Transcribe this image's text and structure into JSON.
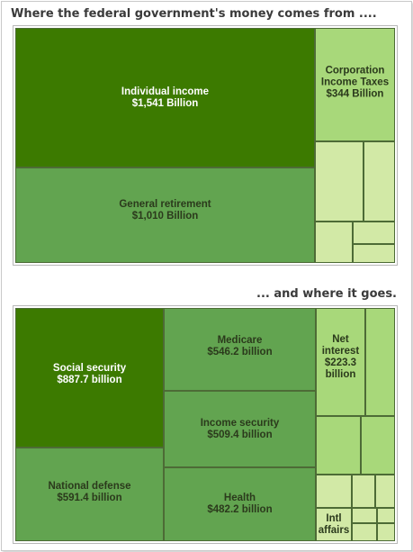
{
  "headings": {
    "top": "Where the federal government's money comes from ....",
    "bottom": "... and where it goes."
  },
  "colors": {
    "dark_green": "#3c7a00",
    "mid_green": "#62a450",
    "light_green": "#a8d87a",
    "pale_green": "#d2e9a6",
    "border": "#4d6b36"
  },
  "chart_data": [
    {
      "type": "treemap",
      "title": "Where the federal government's money comes from ....",
      "units": "Billion",
      "items": [
        {
          "label": "Individual income",
          "value_text": "$1,541 Billion",
          "value": 1541
        },
        {
          "label": "General retirement",
          "value_text": "$1,010 Billion",
          "value": 1010
        },
        {
          "label": "Corporation Income Taxes",
          "value_text": "$344 Billion",
          "value": 344
        },
        {
          "label": "",
          "value_text": "",
          "value": 175
        },
        {
          "label": "",
          "value_text": "",
          "value": 115
        },
        {
          "label": "",
          "value_text": "",
          "value": 40
        },
        {
          "label": "",
          "value_text": "",
          "value": 20
        },
        {
          "label": "",
          "value_text": "",
          "value": 18
        }
      ]
    },
    {
      "type": "treemap",
      "title": "... and where it goes.",
      "units": "billion",
      "items": [
        {
          "label": "Social security",
          "value_text": "$887.7 billion",
          "value": 887.7
        },
        {
          "label": "National defense",
          "value_text": "$591.4 billion",
          "value": 591.4
        },
        {
          "label": "Medicare",
          "value_text": "$546.2 billion",
          "value": 546.2
        },
        {
          "label": "Income security",
          "value_text": "$509.4 billion",
          "value": 509.4
        },
        {
          "label": "Health",
          "value_text": "$482.2 billion",
          "value": 482.2
        },
        {
          "label": "Net interest",
          "value_text": "$223.3 billion",
          "value": 223.3
        },
        {
          "label": "",
          "value_text": "",
          "value": 120
        },
        {
          "label": "",
          "value_text": "",
          "value": 110
        },
        {
          "label": "",
          "value_text": "",
          "value": 75
        },
        {
          "label": "",
          "value_text": "",
          "value": 40
        },
        {
          "label": "",
          "value_text": "",
          "value": 30
        },
        {
          "label": "",
          "value_text": "",
          "value": 25
        },
        {
          "label": "Intl affairs",
          "value_text": "",
          "value": 35
        },
        {
          "label": "",
          "value_text": "",
          "value": 12
        },
        {
          "label": "",
          "value_text": "",
          "value": 10
        },
        {
          "label": "",
          "value_text": "",
          "value": 10
        },
        {
          "label": "",
          "value_text": "",
          "value": 8
        }
      ]
    }
  ]
}
